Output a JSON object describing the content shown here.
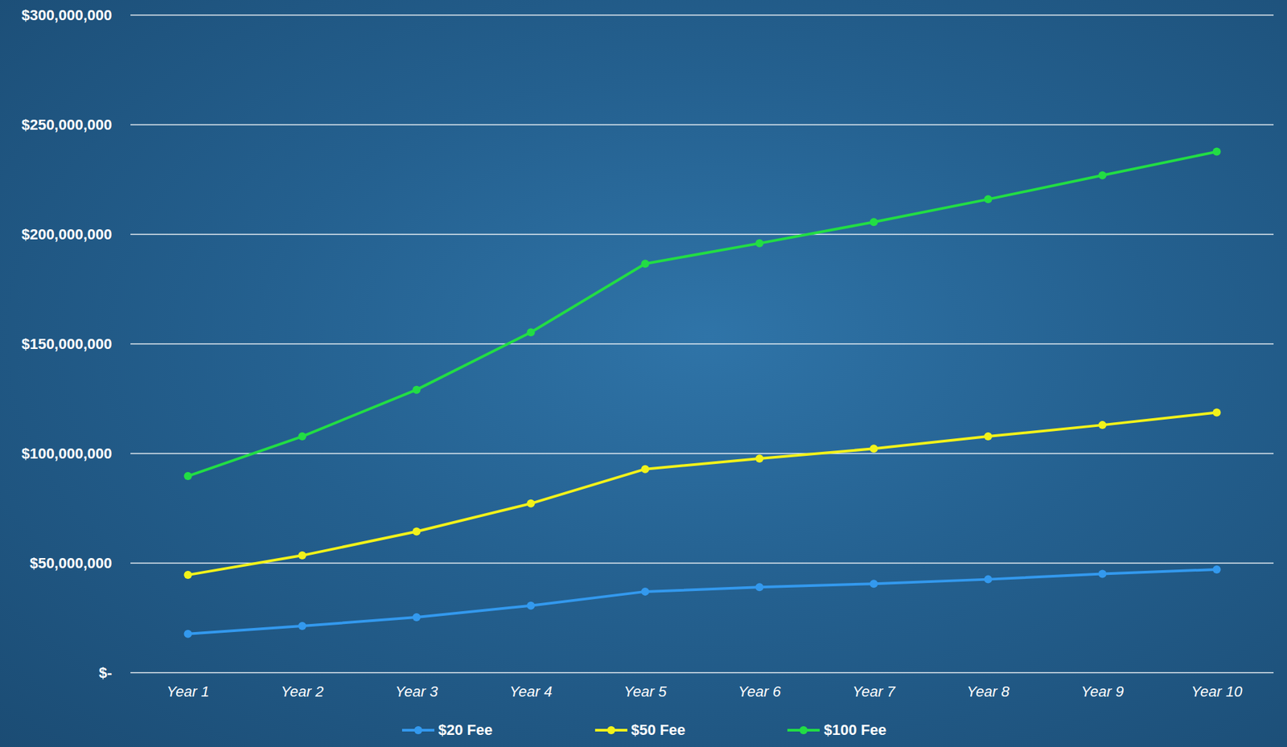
{
  "chart_data": {
    "type": "line",
    "categories": [
      "Year 1",
      "Year 2",
      "Year 3",
      "Year 4",
      "Year 5",
      "Year 6",
      "Year 7",
      "Year 8",
      "Year 9",
      "Year 10"
    ],
    "series": [
      {
        "name": "$20 Fee",
        "color": "#3399ee",
        "marker": "circle",
        "values": [
          17700000,
          21300000,
          25300000,
          30600000,
          37000000,
          39000000,
          40600000,
          42600000,
          45100000,
          47100000
        ]
      },
      {
        "name": "$50 Fee",
        "color": "#f2f21a",
        "marker": "circle",
        "values": [
          44600000,
          53500000,
          64400000,
          77200000,
          92900000,
          97700000,
          102200000,
          107800000,
          113000000,
          118700000
        ]
      },
      {
        "name": "$100 Fee",
        "color": "#22dd44",
        "marker": "circle",
        "values": [
          89700000,
          107800000,
          129100000,
          155300000,
          186600000,
          195900000,
          205600000,
          216000000,
          226900000,
          237700000
        ]
      }
    ],
    "ylim": [
      0,
      300000000
    ],
    "yticks": [
      {
        "value": 0,
        "label": "$-"
      },
      {
        "value": 50000000,
        "label": "$50,000,000"
      },
      {
        "value": 100000000,
        "label": "$100,000,000"
      },
      {
        "value": 150000000,
        "label": "$150,000,000"
      },
      {
        "value": 200000000,
        "label": "$200,000,000"
      },
      {
        "value": 250000000,
        "label": "$250,000,000"
      },
      {
        "value": 300000000,
        "label": "$300,000,000"
      }
    ],
    "grid": true,
    "legend": "bottom"
  }
}
